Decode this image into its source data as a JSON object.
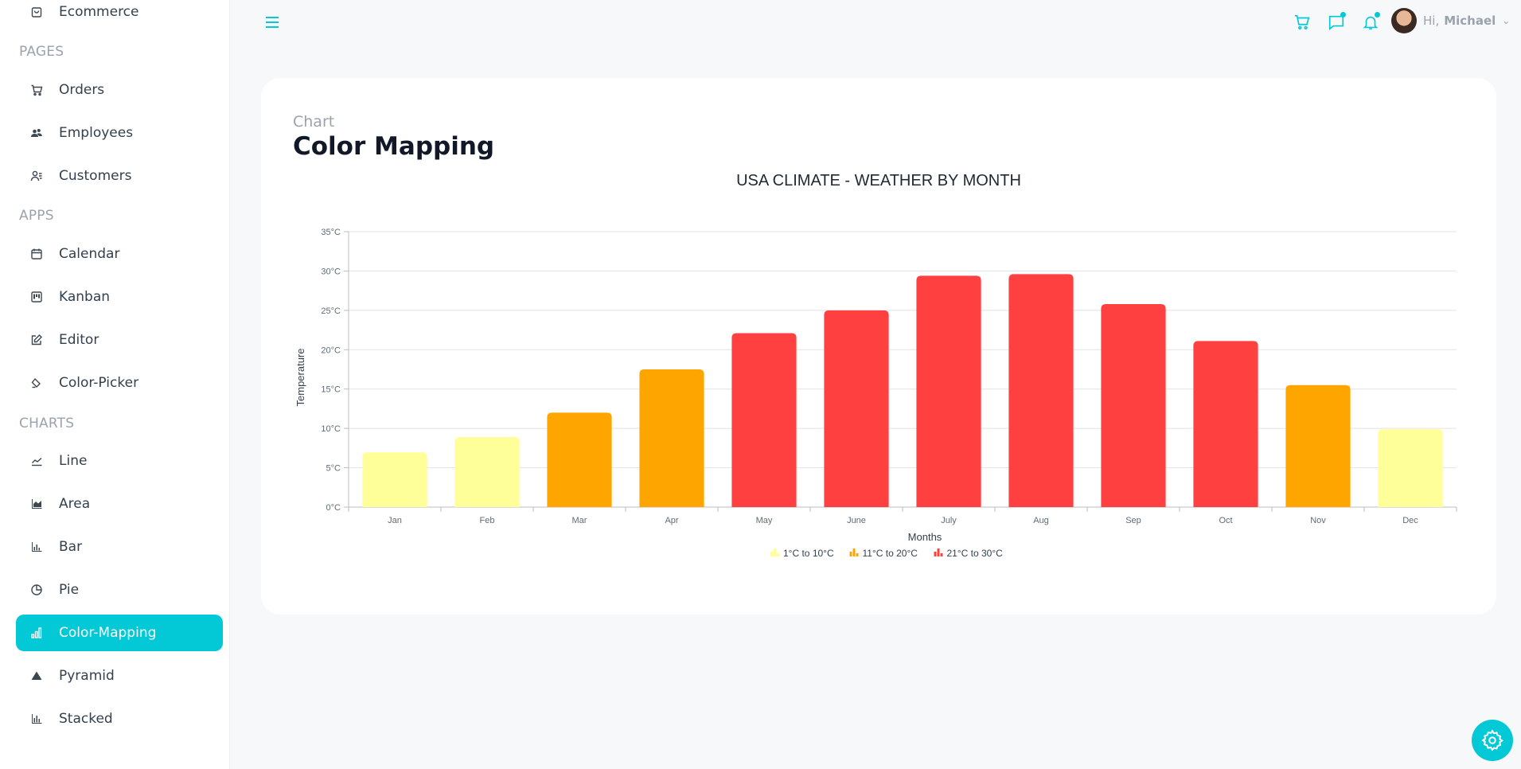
{
  "sidebar": {
    "sections": [
      {
        "label": "PAGES"
      },
      {
        "label": "APPS"
      },
      {
        "label": "CHARTS"
      }
    ],
    "items": [
      {
        "label": "Ecommerce",
        "icon": "shopping-bag-icon"
      },
      {
        "label": "Orders",
        "icon": "cart-icon"
      },
      {
        "label": "Employees",
        "icon": "employees-icon"
      },
      {
        "label": "Customers",
        "icon": "customers-icon"
      },
      {
        "label": "Calendar",
        "icon": "calendar-icon"
      },
      {
        "label": "Kanban",
        "icon": "kanban-icon"
      },
      {
        "label": "Editor",
        "icon": "editor-icon"
      },
      {
        "label": "Color-Picker",
        "icon": "color-picker-icon"
      },
      {
        "label": "Line",
        "icon": "line-chart-icon"
      },
      {
        "label": "Area",
        "icon": "area-chart-icon"
      },
      {
        "label": "Bar",
        "icon": "bar-chart-icon"
      },
      {
        "label": "Pie",
        "icon": "pie-chart-icon"
      },
      {
        "label": "Color-Mapping",
        "icon": "color-mapping-icon",
        "active": true
      },
      {
        "label": "Pyramid",
        "icon": "pyramid-icon"
      },
      {
        "label": "Stacked",
        "icon": "stacked-chart-icon"
      }
    ]
  },
  "header": {
    "greeting": "Hi,",
    "user_name": "Michael",
    "icons": [
      "menu-icon",
      "cart-icon",
      "chat-icon",
      "bell-icon",
      "chevron-down-icon"
    ]
  },
  "card": {
    "category": "Chart",
    "title": "Color Mapping"
  },
  "colors": {
    "accent": "#03c9d7",
    "low": "#FFFF99",
    "mid": "#FFA500",
    "high": "#FF4040"
  },
  "chart_data": {
    "type": "bar",
    "title": "USA CLIMATE - WEATHER BY MONTH",
    "xlabel": "Months",
    "ylabel": "Temperature",
    "categories": [
      "Jan",
      "Feb",
      "Mar",
      "Apr",
      "May",
      "June",
      "July",
      "Aug",
      "Sep",
      "Oct",
      "Nov",
      "Dec"
    ],
    "values": [
      6.96,
      8.9,
      12,
      17.5,
      22.1,
      25,
      29.4,
      29.6,
      25.8,
      21.1,
      15.5,
      9.9
    ],
    "ylim": [
      0,
      35
    ],
    "yticks": [
      0,
      5,
      10,
      15,
      20,
      25,
      30,
      35
    ],
    "ytick_suffix": "°C",
    "grid": true,
    "legend_position": "bottom",
    "color_ranges": [
      {
        "label": "1°C to 10°C",
        "from": 1,
        "to": 10,
        "color": "#FFFF99"
      },
      {
        "label": "11°C to 20°C",
        "from": 11,
        "to": 20,
        "color": "#FFA500"
      },
      {
        "label": "21°C to 30°C",
        "from": 21,
        "to": 30,
        "color": "#FF4040"
      }
    ]
  }
}
